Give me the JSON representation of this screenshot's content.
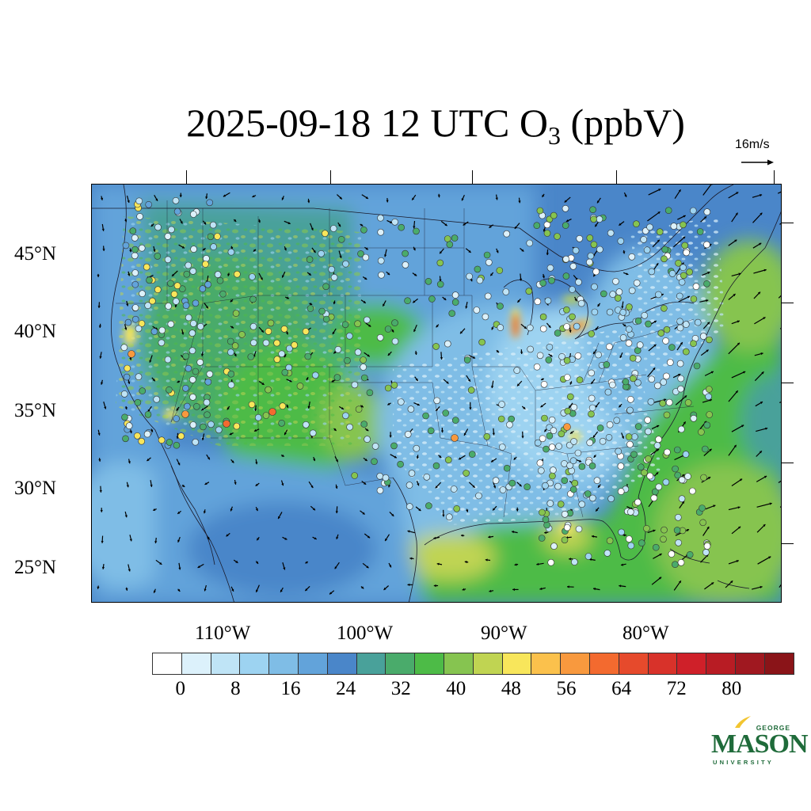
{
  "title": {
    "main": "2025-09-18 12 UTC O",
    "sub": "3",
    "unit": " (ppbV)"
  },
  "vector_reference": {
    "label": "16m/s"
  },
  "lat_labels": [
    "45°N",
    "40°N",
    "35°N",
    "30°N",
    "25°N"
  ],
  "lon_labels": [
    "110°W",
    "100°W",
    "90°W",
    "80°W"
  ],
  "colorbar": {
    "labels": [
      "0",
      "8",
      "16",
      "24",
      "32",
      "40",
      "48",
      "56",
      "64",
      "72",
      "80"
    ],
    "colors": [
      "#ffffff",
      "#dcf1fb",
      "#bfe4f6",
      "#9dd3f1",
      "#7fbde6",
      "#62a3da",
      "#4a86c9",
      "#49a19a",
      "#4aab6b",
      "#4dbb47",
      "#86c450",
      "#c0d452",
      "#f8e65b",
      "#fbc14c",
      "#f8993e",
      "#f36a2f",
      "#e64a2c",
      "#d8322a",
      "#cf2029",
      "#b81c24",
      "#a01820",
      "#8a1418"
    ],
    "min": 0,
    "max": 80,
    "step": 4
  },
  "logo": {
    "george": "GEORGE",
    "mason": "MASON",
    "univ": "UNIVERSITY"
  }
}
